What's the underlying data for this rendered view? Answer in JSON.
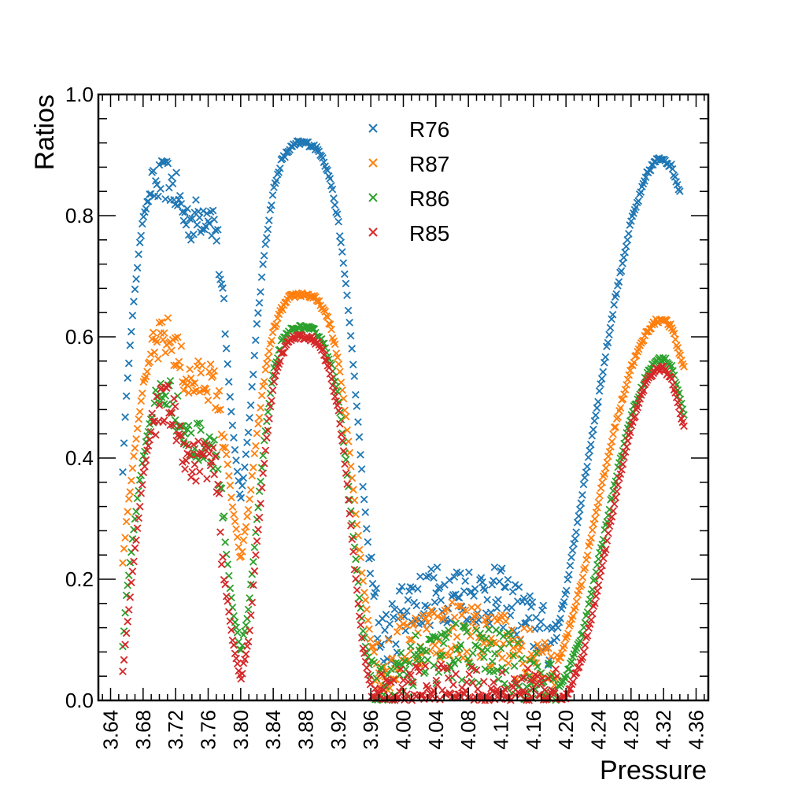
{
  "chart_data": {
    "type": "scatter",
    "xlabel": "Pressure",
    "ylabel": "Ratios",
    "xlim": [
      3.625,
      4.375
    ],
    "ylim": [
      0.0,
      1.0
    ],
    "x_ticks": [
      "3.64",
      "3.68",
      "3.72",
      "3.76",
      "3.80",
      "3.84",
      "3.88",
      "3.92",
      "3.96",
      "4.00",
      "4.04",
      "4.08",
      "4.12",
      "4.16",
      "4.20",
      "4.24",
      "4.28",
      "4.32",
      "4.36"
    ],
    "y_ticks": [
      "0.0",
      "0.2",
      "0.4",
      "0.6",
      "0.8",
      "1.0"
    ],
    "grid": false,
    "legend_position": "top-center",
    "marker": "x",
    "series": [
      {
        "name": "R76",
        "color": "#1f77b4",
        "key": [
          [
            3.655,
            0.38
          ],
          [
            3.66,
            0.52
          ],
          [
            3.67,
            0.68
          ],
          [
            3.68,
            0.8
          ],
          [
            3.69,
            0.84
          ],
          [
            3.7,
            0.855
          ],
          [
            3.71,
            0.86
          ],
          [
            3.72,
            0.84
          ],
          [
            3.73,
            0.8
          ],
          [
            3.74,
            0.79
          ],
          [
            3.75,
            0.8
          ],
          [
            3.76,
            0.81
          ],
          [
            3.77,
            0.78
          ],
          [
            3.78,
            0.62
          ],
          [
            3.79,
            0.45
          ],
          [
            3.8,
            0.33
          ],
          [
            3.81,
            0.45
          ],
          [
            3.82,
            0.62
          ],
          [
            3.83,
            0.75
          ],
          [
            3.84,
            0.84
          ],
          [
            3.85,
            0.89
          ],
          [
            3.86,
            0.91
          ],
          [
            3.87,
            0.92
          ],
          [
            3.88,
            0.92
          ],
          [
            3.89,
            0.915
          ],
          [
            3.9,
            0.9
          ],
          [
            3.91,
            0.86
          ],
          [
            3.92,
            0.79
          ],
          [
            3.93,
            0.68
          ],
          [
            3.94,
            0.53
          ],
          [
            3.95,
            0.36
          ],
          [
            3.96,
            0.2
          ],
          [
            3.97,
            0.12
          ],
          [
            3.98,
            0.1
          ],
          [
            3.99,
            0.12
          ],
          [
            4.0,
            0.16
          ],
          [
            4.06,
            0.18
          ],
          [
            4.12,
            0.17
          ],
          [
            4.18,
            0.1
          ],
          [
            4.19,
            0.12
          ],
          [
            4.2,
            0.18
          ],
          [
            4.22,
            0.34
          ],
          [
            4.24,
            0.5
          ],
          [
            4.26,
            0.66
          ],
          [
            4.28,
            0.79
          ],
          [
            4.3,
            0.87
          ],
          [
            4.31,
            0.89
          ],
          [
            4.32,
            0.895
          ],
          [
            4.33,
            0.88
          ],
          [
            4.34,
            0.84
          ]
        ]
      },
      {
        "name": "R87",
        "color": "#ff7f0e",
        "key": [
          [
            3.655,
            0.23
          ],
          [
            3.66,
            0.3
          ],
          [
            3.67,
            0.42
          ],
          [
            3.68,
            0.52
          ],
          [
            3.69,
            0.57
          ],
          [
            3.7,
            0.59
          ],
          [
            3.71,
            0.6
          ],
          [
            3.72,
            0.58
          ],
          [
            3.73,
            0.54
          ],
          [
            3.74,
            0.52
          ],
          [
            3.75,
            0.53
          ],
          [
            3.76,
            0.53
          ],
          [
            3.77,
            0.51
          ],
          [
            3.78,
            0.43
          ],
          [
            3.79,
            0.32
          ],
          [
            3.8,
            0.23
          ],
          [
            3.81,
            0.32
          ],
          [
            3.82,
            0.44
          ],
          [
            3.83,
            0.54
          ],
          [
            3.84,
            0.61
          ],
          [
            3.85,
            0.645
          ],
          [
            3.86,
            0.665
          ],
          [
            3.87,
            0.67
          ],
          [
            3.88,
            0.67
          ],
          [
            3.89,
            0.665
          ],
          [
            3.9,
            0.65
          ],
          [
            3.91,
            0.62
          ],
          [
            3.92,
            0.56
          ],
          [
            3.93,
            0.46
          ],
          [
            3.94,
            0.33
          ],
          [
            3.95,
            0.2
          ],
          [
            3.96,
            0.1
          ],
          [
            3.97,
            0.06
          ],
          [
            3.98,
            0.05
          ],
          [
            3.99,
            0.07
          ],
          [
            4.0,
            0.1
          ],
          [
            4.06,
            0.12
          ],
          [
            4.12,
            0.1
          ],
          [
            4.18,
            0.05
          ],
          [
            4.19,
            0.06
          ],
          [
            4.2,
            0.1
          ],
          [
            4.22,
            0.2
          ],
          [
            4.24,
            0.33
          ],
          [
            4.26,
            0.45
          ],
          [
            4.28,
            0.55
          ],
          [
            4.3,
            0.61
          ],
          [
            4.31,
            0.625
          ],
          [
            4.32,
            0.63
          ],
          [
            4.33,
            0.615
          ],
          [
            4.34,
            0.57
          ],
          [
            4.345,
            0.55
          ]
        ]
      },
      {
        "name": "R86",
        "color": "#2ca02c",
        "key": [
          [
            3.655,
            0.09
          ],
          [
            3.66,
            0.18
          ],
          [
            3.67,
            0.3
          ],
          [
            3.68,
            0.4
          ],
          [
            3.69,
            0.47
          ],
          [
            3.7,
            0.5
          ],
          [
            3.71,
            0.51
          ],
          [
            3.72,
            0.48
          ],
          [
            3.73,
            0.44
          ],
          [
            3.74,
            0.42
          ],
          [
            3.75,
            0.43
          ],
          [
            3.76,
            0.43
          ],
          [
            3.77,
            0.41
          ],
          [
            3.78,
            0.27
          ],
          [
            3.79,
            0.15
          ],
          [
            3.8,
            0.08
          ],
          [
            3.81,
            0.15
          ],
          [
            3.82,
            0.3
          ],
          [
            3.83,
            0.44
          ],
          [
            3.84,
            0.54
          ],
          [
            3.85,
            0.59
          ],
          [
            3.86,
            0.61
          ],
          [
            3.87,
            0.615
          ],
          [
            3.88,
            0.615
          ],
          [
            3.89,
            0.61
          ],
          [
            3.9,
            0.595
          ],
          [
            3.91,
            0.56
          ],
          [
            3.92,
            0.5
          ],
          [
            3.93,
            0.39
          ],
          [
            3.94,
            0.25
          ],
          [
            3.95,
            0.12
          ],
          [
            3.96,
            0.04
          ],
          [
            3.97,
            0.01
          ],
          [
            3.98,
            0.01
          ],
          [
            3.99,
            0.02
          ],
          [
            4.0,
            0.05
          ],
          [
            4.06,
            0.08
          ],
          [
            4.12,
            0.07
          ],
          [
            4.18,
            0.02
          ],
          [
            4.19,
            0.02
          ],
          [
            4.2,
            0.04
          ],
          [
            4.22,
            0.11
          ],
          [
            4.24,
            0.23
          ],
          [
            4.26,
            0.36
          ],
          [
            4.28,
            0.47
          ],
          [
            4.3,
            0.54
          ],
          [
            4.31,
            0.56
          ],
          [
            4.32,
            0.565
          ],
          [
            4.33,
            0.55
          ],
          [
            4.34,
            0.5
          ],
          [
            4.345,
            0.47
          ]
        ]
      },
      {
        "name": "R85",
        "color": "#d62728",
        "key": [
          [
            3.655,
            0.045
          ],
          [
            3.66,
            0.12
          ],
          [
            3.67,
            0.25
          ],
          [
            3.68,
            0.37
          ],
          [
            3.69,
            0.45
          ],
          [
            3.7,
            0.48
          ],
          [
            3.71,
            0.49
          ],
          [
            3.72,
            0.46
          ],
          [
            3.73,
            0.42
          ],
          [
            3.74,
            0.39
          ],
          [
            3.75,
            0.4
          ],
          [
            3.76,
            0.4
          ],
          [
            3.77,
            0.37
          ],
          [
            3.78,
            0.2
          ],
          [
            3.79,
            0.1
          ],
          [
            3.8,
            0.035
          ],
          [
            3.81,
            0.1
          ],
          [
            3.82,
            0.26
          ],
          [
            3.83,
            0.41
          ],
          [
            3.84,
            0.52
          ],
          [
            3.85,
            0.57
          ],
          [
            3.86,
            0.595
          ],
          [
            3.87,
            0.6
          ],
          [
            3.88,
            0.6
          ],
          [
            3.89,
            0.595
          ],
          [
            3.9,
            0.58
          ],
          [
            3.91,
            0.54
          ],
          [
            3.92,
            0.48
          ],
          [
            3.93,
            0.37
          ],
          [
            3.94,
            0.22
          ],
          [
            3.95,
            0.09
          ],
          [
            3.96,
            0.02
          ],
          [
            3.97,
            0.0
          ],
          [
            3.98,
            0.0
          ],
          [
            4.0,
            0.01
          ],
          [
            4.06,
            0.01
          ],
          [
            4.12,
            0.01
          ],
          [
            4.18,
            0.0
          ],
          [
            4.2,
            0.005
          ],
          [
            4.22,
            0.07
          ],
          [
            4.24,
            0.19
          ],
          [
            4.26,
            0.33
          ],
          [
            4.28,
            0.45
          ],
          [
            4.3,
            0.53
          ],
          [
            4.31,
            0.545
          ],
          [
            4.32,
            0.548
          ],
          [
            4.33,
            0.53
          ],
          [
            4.34,
            0.48
          ],
          [
            4.345,
            0.45
          ]
        ]
      }
    ]
  }
}
